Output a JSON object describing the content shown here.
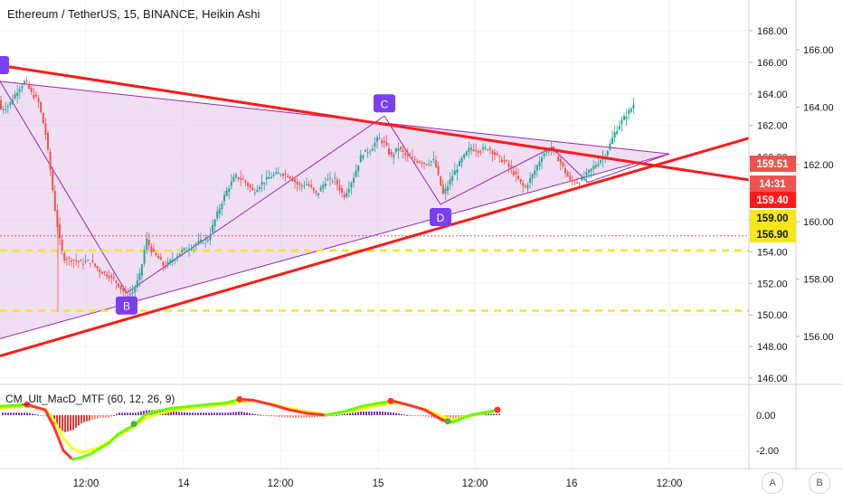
{
  "header": {
    "symbol_title": "Ethereum / TetherUS, 15, BINANCE, Heikin Ashi"
  },
  "indicator": {
    "title": "CM_Ult_MacD_MTF (60, 12, 26, 9)"
  },
  "scale_buttons": {
    "a": "A",
    "b": "B"
  },
  "colors": {
    "bull": "#26a69a",
    "bear": "#ef5350",
    "trendline": "#ff1a1a",
    "triangle": "#9c27b0",
    "triangle_fill": "#e1bee7",
    "dashed": "#f6e71a",
    "label_bg": "#7b3ff2",
    "macd_up": "#66ff00",
    "macd_down": "#ff3333",
    "macd_signal": "#ffff00"
  },
  "chart_data": [
    {
      "type": "candlestick",
      "title": "Ethereum / TetherUS, 15, BINANCE, Heikin Ashi",
      "x_ticks": [
        "12:00",
        "14",
        "12:00",
        "15",
        "12:00",
        "16",
        "12:00"
      ],
      "y_left_ticks": [
        "168.00",
        "166.00",
        "164.00",
        "162.00",
        "160.00",
        "158.00",
        "156.00",
        "154.00",
        "152.00",
        "150.00",
        "148.00",
        "146.00"
      ],
      "y_left_range": [
        146,
        168
      ],
      "y_right_ticks": [
        "166.00",
        "164.00",
        "162.00",
        "160.00",
        "158.00",
        "156.00"
      ],
      "y_right_range": [
        154.5,
        166.5
      ],
      "price_path": [
        [
          0,
          163.0
        ],
        [
          10,
          163.3
        ],
        [
          20,
          164.3
        ],
        [
          28,
          164.8
        ],
        [
          35,
          164.0
        ],
        [
          42,
          163.6
        ],
        [
          50,
          161.6
        ],
        [
          55,
          159.5
        ],
        [
          60,
          157.0
        ],
        [
          65,
          155.0
        ],
        [
          70,
          153.6
        ],
        [
          80,
          153.5
        ],
        [
          90,
          153.3
        ],
        [
          100,
          153.4
        ],
        [
          110,
          152.8
        ],
        [
          120,
          152.5
        ],
        [
          130,
          152.0
        ],
        [
          140,
          151.2
        ],
        [
          148,
          151.5
        ],
        [
          155,
          152.6
        ],
        [
          162,
          154.8
        ],
        [
          168,
          154.0
        ],
        [
          175,
          153.6
        ],
        [
          182,
          153.0
        ],
        [
          190,
          153.5
        ],
        [
          200,
          154.0
        ],
        [
          210,
          154.3
        ],
        [
          220,
          154.6
        ],
        [
          230,
          154.8
        ],
        [
          240,
          156.4
        ],
        [
          250,
          157.8
        ],
        [
          260,
          158.8
        ],
        [
          270,
          158.5
        ],
        [
          280,
          157.8
        ],
        [
          290,
          158.4
        ],
        [
          300,
          158.8
        ],
        [
          310,
          159.0
        ],
        [
          320,
          158.8
        ],
        [
          330,
          158.2
        ],
        [
          340,
          158.3
        ],
        [
          350,
          157.6
        ],
        [
          360,
          158.5
        ],
        [
          370,
          158.6
        ],
        [
          380,
          157.5
        ],
        [
          390,
          158.6
        ],
        [
          400,
          160.2
        ],
        [
          410,
          160.5
        ],
        [
          418,
          161.2
        ],
        [
          426,
          160.8
        ],
        [
          432,
          160.0
        ],
        [
          440,
          160.6
        ],
        [
          450,
          160.0
        ],
        [
          460,
          159.8
        ],
        [
          470,
          159.6
        ],
        [
          480,
          159.8
        ],
        [
          490,
          157.6
        ],
        [
          500,
          158.8
        ],
        [
          510,
          159.8
        ],
        [
          520,
          160.6
        ],
        [
          530,
          160.4
        ],
        [
          540,
          160.6
        ],
        [
          550,
          160.0
        ],
        [
          560,
          159.6
        ],
        [
          570,
          158.8
        ],
        [
          580,
          158.0
        ],
        [
          590,
          159.0
        ],
        [
          600,
          160.2
        ],
        [
          610,
          160.6
        ],
        [
          620,
          159.6
        ],
        [
          630,
          158.5
        ],
        [
          640,
          158.4
        ],
        [
          650,
          159.0
        ],
        [
          660,
          159.6
        ],
        [
          670,
          160.2
        ],
        [
          680,
          161.6
        ],
        [
          690,
          162.5
        ],
        [
          697,
          163.0
        ],
        [
          703,
          163.6
        ]
      ]
    },
    {
      "type": "line",
      "title": "CM_Ult_MacD_MTF (60, 12, 26, 9)",
      "y_ticks": [
        "0.00",
        "-2.00"
      ],
      "y_range": [
        -2.9,
        1.0
      ],
      "series": [
        {
          "x": [
            0,
            30,
            50,
            60,
            70,
            80,
            90,
            100,
            110,
            120,
            130,
            140,
            150,
            160,
            170,
            190,
            210,
            230,
            250,
            265,
            280,
            300,
            320,
            340,
            360,
            380,
            400,
            420,
            435,
            450,
            470,
            490,
            500,
            520,
            540,
            552
          ],
          "values": [
            0.5,
            0.6,
            0.3,
            -0.7,
            -2.0,
            -2.5,
            -2.4,
            -2.2,
            -1.9,
            -1.6,
            -1.1,
            -0.8,
            -0.5,
            0.0,
            0.2,
            0.4,
            0.5,
            0.6,
            0.7,
            0.9,
            0.85,
            0.6,
            0.3,
            0.1,
            0.0,
            0.2,
            0.5,
            0.7,
            0.8,
            0.6,
            0.3,
            -0.3,
            -0.4,
            0.0,
            0.2,
            0.3
          ]
        },
        {
          "x": [
            0,
            30,
            50,
            60,
            70,
            80,
            90,
            100,
            110,
            120,
            130,
            140,
            150,
            160,
            170,
            190,
            210,
            230,
            250,
            265,
            280,
            300,
            320,
            340,
            360,
            380,
            400,
            420,
            435,
            450,
            470,
            490,
            500,
            520,
            540,
            552
          ],
          "values": [
            0.4,
            0.5,
            0.35,
            -0.3,
            -1.3,
            -1.9,
            -2.1,
            -2.0,
            -1.8,
            -1.5,
            -1.2,
            -0.9,
            -0.6,
            -0.2,
            0.0,
            0.25,
            0.4,
            0.5,
            0.6,
            0.75,
            0.8,
            0.65,
            0.4,
            0.2,
            0.05,
            0.15,
            0.35,
            0.55,
            0.7,
            0.6,
            0.35,
            -0.1,
            -0.25,
            -0.05,
            0.15,
            0.25
          ]
        }
      ]
    }
  ],
  "price_labels": [
    {
      "text": "159.51",
      "value": 159.51,
      "bg": "#ef5350",
      "fg": "#ffffff"
    },
    {
      "text": "14:31",
      "value": 160.95,
      "bg": "#ef5350",
      "fg": "#ffffff"
    },
    {
      "text": "159.40",
      "value": 159.4,
      "bg": "#ff1a1a",
      "fg": "#ffffff"
    },
    {
      "text": "159.00",
      "value": 159.0,
      "bg": "#f6e71a",
      "fg": "#131722"
    },
    {
      "text": "156.90",
      "value": 156.9,
      "bg": "#f6e71a",
      "fg": "#131722"
    }
  ],
  "pattern_points": [
    {
      "label": "B",
      "x": 140,
      "value": 151.4
    },
    {
      "label": "C",
      "x": 425,
      "value": 162.6
    },
    {
      "label": "D",
      "x": 487,
      "value": 157.0
    }
  ],
  "pattern_start_label": "",
  "dashed_levels": [
    159.0,
    156.9
  ]
}
